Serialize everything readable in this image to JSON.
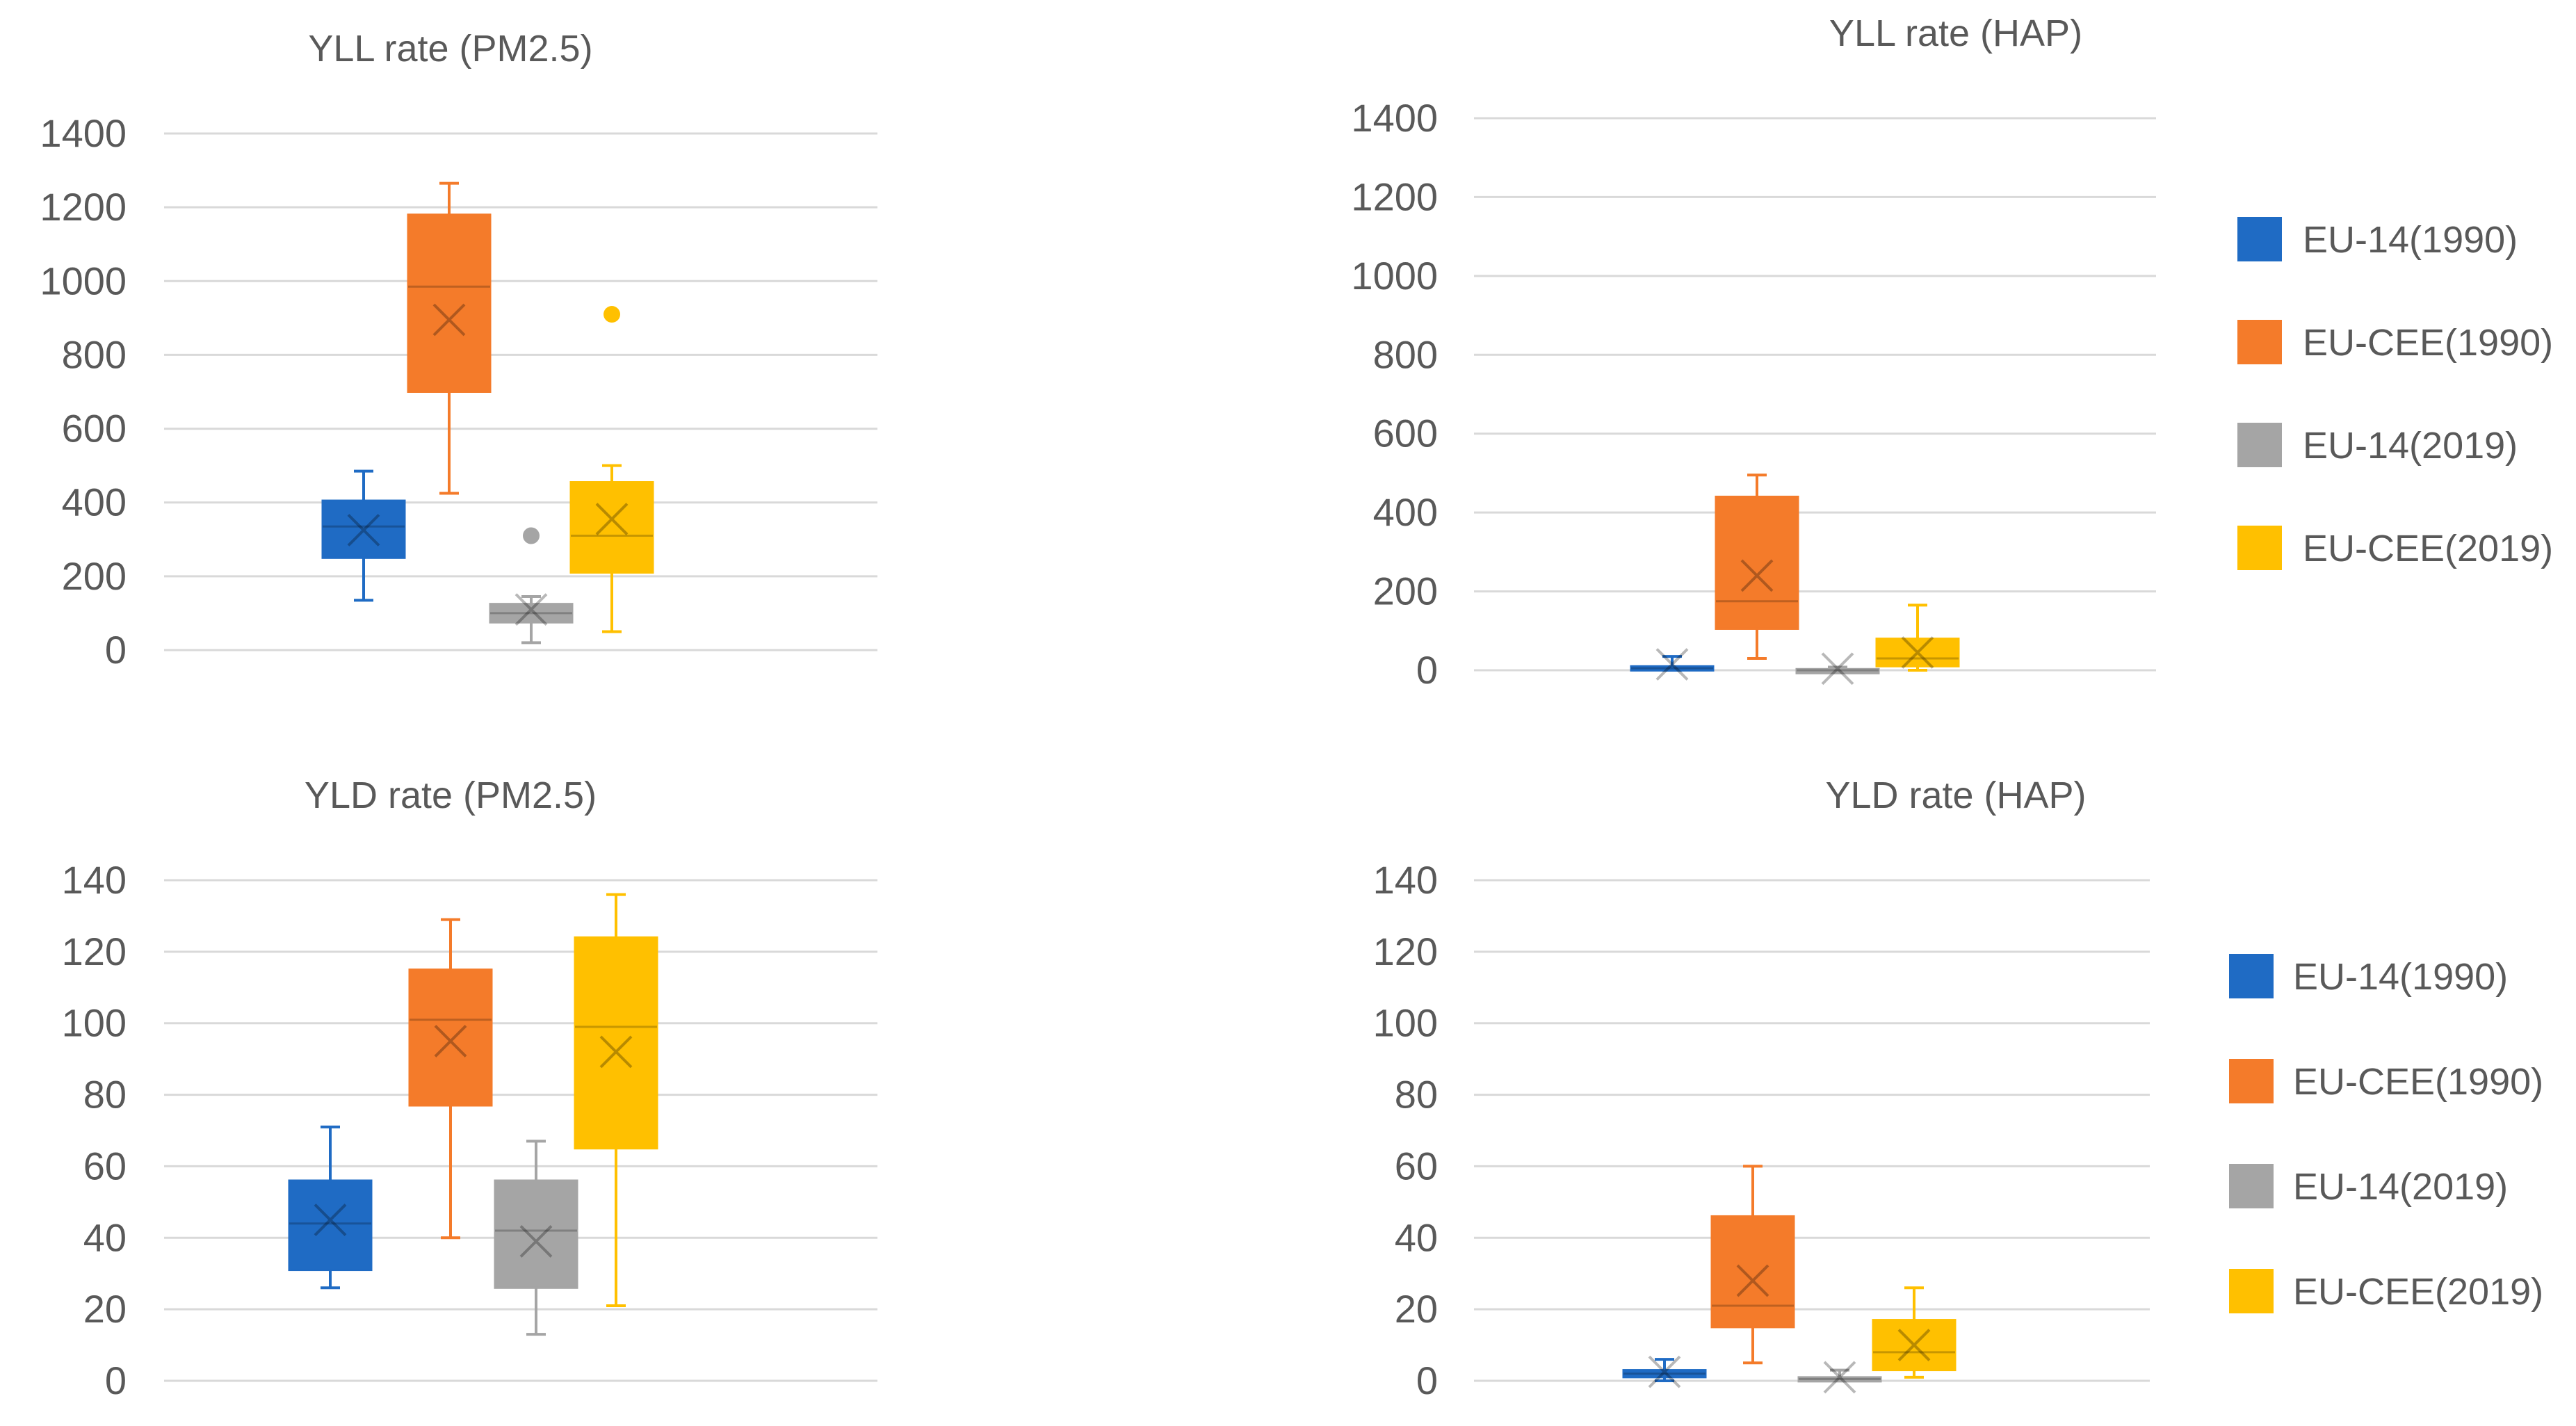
{
  "colors": {
    "eu14_1990": "#1f6bc4",
    "eucee_1990": "#f47b2a",
    "eu14_2019": "#a5a5a5",
    "eucee_2019": "#ffc000",
    "grid": "#d9d9d9",
    "text": "#595959"
  },
  "chart_data": [
    {
      "id": "yll-pm25",
      "type": "boxplot",
      "title": "YLL rate (PM2.5)",
      "ylim": [
        0,
        1400
      ],
      "yticks": [
        "0",
        "200",
        "400",
        "600",
        "800",
        "1000",
        "1200",
        "1400"
      ],
      "series": [
        {
          "name": "EU-14(1990)",
          "whisker_low": 135,
          "q1": 250,
          "median": 335,
          "q3": 405,
          "whisker_high": 485,
          "mean": 325,
          "outliers": []
        },
        {
          "name": "EU-CEE(1990)",
          "whisker_low": 425,
          "q1": 700,
          "median": 985,
          "q3": 1180,
          "whisker_high": 1265,
          "mean": 895,
          "outliers": []
        },
        {
          "name": "EU-14(2019)",
          "whisker_low": 20,
          "q1": 75,
          "median": 100,
          "q3": 125,
          "whisker_high": 145,
          "mean": 110,
          "outliers": [
            310
          ]
        },
        {
          "name": "EU-CEE(2019)",
          "whisker_low": 50,
          "q1": 210,
          "median": 310,
          "q3": 455,
          "whisker_high": 500,
          "mean": 355,
          "outliers": [
            910
          ]
        }
      ]
    },
    {
      "id": "yll-hap",
      "type": "boxplot",
      "title": "YLL rate (HAP)",
      "ylim": [
        0,
        1400
      ],
      "yticks": [
        "0",
        "200",
        "400",
        "600",
        "800",
        "1000",
        "1200",
        "1400"
      ],
      "series": [
        {
          "name": "EU-14(1990)",
          "whisker_low": 0,
          "q1": 0,
          "median": 5,
          "q3": 10,
          "whisker_high": 35,
          "mean": 15,
          "outliers": []
        },
        {
          "name": "EU-CEE(1990)",
          "whisker_low": 30,
          "q1": 105,
          "median": 175,
          "q3": 440,
          "whisker_high": 495,
          "mean": 240,
          "outliers": []
        },
        {
          "name": "EU-14(2019)",
          "whisker_low": 0,
          "q1": 0,
          "median": 0,
          "q3": 3,
          "whisker_high": 8,
          "mean": 4,
          "outliers": []
        },
        {
          "name": "EU-CEE(2019)",
          "whisker_low": 0,
          "q1": 10,
          "median": 30,
          "q3": 80,
          "whisker_high": 165,
          "mean": 45,
          "outliers": []
        }
      ]
    },
    {
      "id": "yld-pm25",
      "type": "boxplot",
      "title": "YLD rate (PM2.5)",
      "ylim": [
        0,
        140
      ],
      "yticks": [
        "0",
        "20",
        "40",
        "60",
        "80",
        "100",
        "120",
        "140"
      ],
      "series": [
        {
          "name": "EU-14(1990)",
          "whisker_low": 26,
          "q1": 31,
          "median": 44,
          "q3": 56,
          "whisker_high": 71,
          "mean": 45,
          "outliers": []
        },
        {
          "name": "EU-CEE(1990)",
          "whisker_low": 40,
          "q1": 77,
          "median": 101,
          "q3": 115,
          "whisker_high": 129,
          "mean": 95,
          "outliers": []
        },
        {
          "name": "EU-14(2019)",
          "whisker_low": 13,
          "q1": 26,
          "median": 42,
          "q3": 56,
          "whisker_high": 67,
          "mean": 39,
          "outliers": []
        },
        {
          "name": "EU-CEE(2019)",
          "whisker_low": 21,
          "q1": 65,
          "median": 99,
          "q3": 124,
          "whisker_high": 136,
          "mean": 92,
          "outliers": []
        }
      ]
    },
    {
      "id": "yld-hap",
      "type": "boxplot",
      "title": "YLD rate (HAP)",
      "ylim": [
        0,
        140
      ],
      "yticks": [
        "0",
        "20",
        "40",
        "60",
        "80",
        "100",
        "120",
        "140"
      ],
      "series": [
        {
          "name": "EU-14(1990)",
          "whisker_low": 0,
          "q1": 1,
          "median": 2,
          "q3": 3,
          "whisker_high": 6,
          "mean": 2.5,
          "outliers": []
        },
        {
          "name": "EU-CEE(1990)",
          "whisker_low": 5,
          "q1": 15,
          "median": 21,
          "q3": 46,
          "whisker_high": 60,
          "mean": 28,
          "outliers": []
        },
        {
          "name": "EU-14(2019)",
          "whisker_low": 0,
          "q1": 0,
          "median": 0.5,
          "q3": 1,
          "whisker_high": 3,
          "mean": 1,
          "outliers": []
        },
        {
          "name": "EU-CEE(2019)",
          "whisker_low": 1,
          "q1": 3,
          "median": 8,
          "q3": 17,
          "whisker_high": 26,
          "mean": 10,
          "outliers": []
        }
      ]
    }
  ],
  "legends": [
    {
      "id": "legend-yll",
      "items": [
        "EU-14(1990)",
        "EU-CEE(1990)",
        "EU-14(2019)",
        "EU-CEE(2019)"
      ]
    },
    {
      "id": "legend-yld",
      "items": [
        "EU-14(1990)",
        "EU-CEE(1990)",
        "EU-14(2019)",
        "EU-CEE(2019)"
      ]
    }
  ]
}
